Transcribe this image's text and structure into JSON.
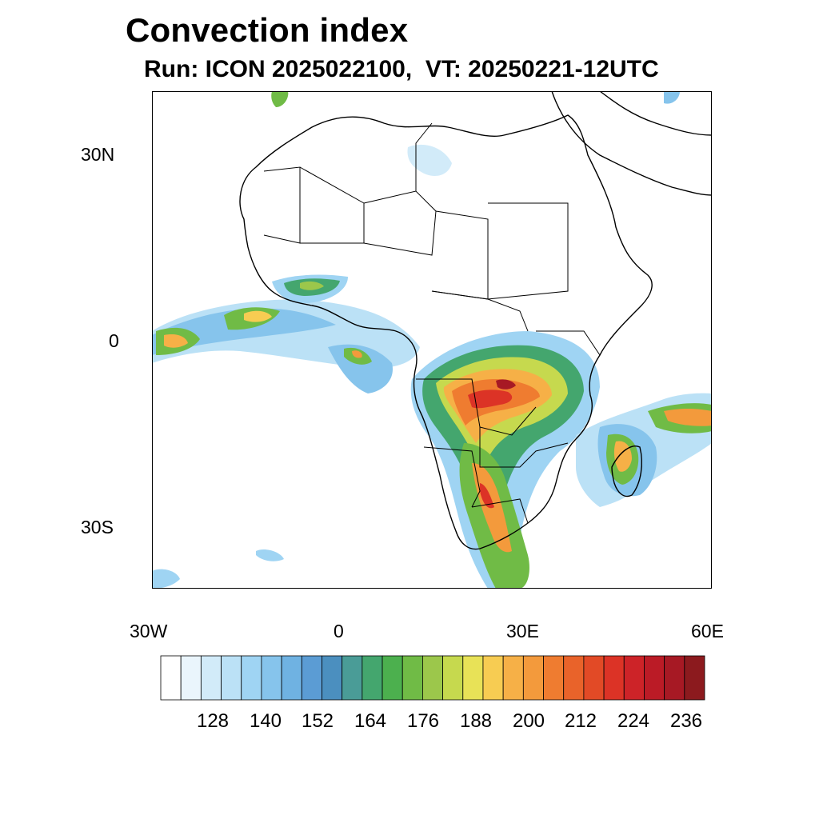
{
  "title": "Convection index",
  "subtitle": "Run: ICON 2025022100,  VT: 20250221-12UTC",
  "map": {
    "lon_range": [
      -30,
      60
    ],
    "lat_range": [
      -40,
      40
    ],
    "x_tick_labels": [
      "30W",
      "0",
      "30E",
      "60E"
    ],
    "y_tick_labels": [
      "30N",
      "0",
      "30S"
    ],
    "coastline_color": "#000000",
    "background": "#ffffff"
  },
  "colorbar": {
    "labels": [
      "128",
      "140",
      "152",
      "164",
      "176",
      "188",
      "200",
      "212",
      "224",
      "236"
    ],
    "colors": [
      "#ffffff",
      "#eaf5fc",
      "#d2ebf9",
      "#bbe1f6",
      "#9fd4f3",
      "#86c4ec",
      "#6fb2e2",
      "#5b9cd4",
      "#4b8fbf",
      "#4a9c97",
      "#44a66e",
      "#4cb04e",
      "#70bb46",
      "#9cc74b",
      "#c6d94e",
      "#e8e257",
      "#f7cc52",
      "#f6b047",
      "#f39a3c",
      "#ef7c30",
      "#e9632a",
      "#e24a26",
      "#dc3326",
      "#cd2328",
      "#bb1b26",
      "#a71924",
      "#8c1a1e"
    ]
  }
}
